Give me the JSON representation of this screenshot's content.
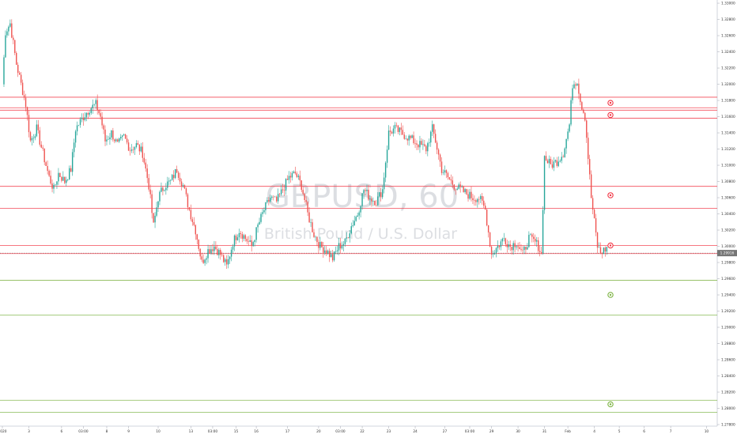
{
  "watermark": {
    "symbol": "GBPUSD, 60",
    "description": "British Pound / U.S. Dollar"
  },
  "price_badge": "1.29916",
  "colors": {
    "up": "#26a69a",
    "down": "#ef5350",
    "res_line": "#f23645",
    "sup_line": "#7cb342",
    "grid": "#f0f3fa",
    "axis_text": "#333333",
    "badge": "#757575"
  },
  "chart_data": {
    "type": "candlestick",
    "title": "GBPUSD, 60",
    "subtitle": "British Pound / U.S. Dollar",
    "xlabel": "",
    "ylabel": "",
    "ylim": [
      1.278,
      1.3302
    ],
    "y_ticks": [
      1.33,
      1.328,
      1.326,
      1.324,
      1.322,
      1.32,
      1.318,
      1.316,
      1.314,
      1.312,
      1.31,
      1.308,
      1.306,
      1.304,
      1.302,
      1.3,
      1.298,
      1.296,
      1.294,
      1.292,
      1.29,
      1.288,
      1.286,
      1.284,
      1.282,
      1.28,
      1.278
    ],
    "x_ticks": [
      {
        "label": "2020",
        "i": 0
      },
      {
        "label": "3",
        "i": 17
      },
      {
        "label": "6",
        "i": 38
      },
      {
        "label": "03:00",
        "i": 52
      },
      {
        "label": "8",
        "i": 67
      },
      {
        "label": "9",
        "i": 81
      },
      {
        "label": "10",
        "i": 100
      },
      {
        "label": "13",
        "i": 121
      },
      {
        "label": "03:00",
        "i": 135
      },
      {
        "label": "15",
        "i": 150
      },
      {
        "label": "16",
        "i": 163
      },
      {
        "label": "17",
        "i": 183
      },
      {
        "label": "20",
        "i": 203
      },
      {
        "label": "03:00",
        "i": 217
      },
      {
        "label": "22",
        "i": 231
      },
      {
        "label": "23",
        "i": 248
      },
      {
        "label": "24",
        "i": 265
      },
      {
        "label": "27",
        "i": 284
      },
      {
        "label": "03:00",
        "i": 300
      },
      {
        "label": "29",
        "i": 314
      },
      {
        "label": "30",
        "i": 331
      },
      {
        "label": "31",
        "i": 348
      },
      {
        "label": "Feb",
        "i": 363
      },
      {
        "label": "4",
        "i": 380
      },
      {
        "label": "5",
        "i": 396
      },
      {
        "label": "6",
        "i": 412
      },
      {
        "label": "7",
        "i": 429
      },
      {
        "label": "10",
        "i": 452
      }
    ],
    "anchors": [
      [
        0,
        1.32
      ],
      [
        2,
        1.3265
      ],
      [
        5,
        1.3275
      ],
      [
        9,
        1.3225
      ],
      [
        15,
        1.3175
      ],
      [
        18,
        1.313
      ],
      [
        22,
        1.3145
      ],
      [
        26,
        1.3115
      ],
      [
        30,
        1.3085
      ],
      [
        33,
        1.307
      ],
      [
        36,
        1.309
      ],
      [
        40,
        1.308
      ],
      [
        44,
        1.3095
      ],
      [
        47,
        1.3145
      ],
      [
        52,
        1.316
      ],
      [
        56,
        1.317
      ],
      [
        60,
        1.3175
      ],
      [
        63,
        1.316
      ],
      [
        66,
        1.313
      ],
      [
        70,
        1.314
      ],
      [
        74,
        1.3125
      ],
      [
        78,
        1.3135
      ],
      [
        82,
        1.312
      ],
      [
        86,
        1.3125
      ],
      [
        90,
        1.3115
      ],
      [
        94,
        1.3075
      ],
      [
        97,
        1.3025
      ],
      [
        100,
        1.306
      ],
      [
        104,
        1.3075
      ],
      [
        108,
        1.308
      ],
      [
        112,
        1.3095
      ],
      [
        116,
        1.3075
      ],
      [
        120,
        1.3045
      ],
      [
        124,
        1.302
      ],
      [
        128,
        1.298
      ],
      [
        132,
        1.2995
      ],
      [
        136,
        1.3
      ],
      [
        140,
        1.299
      ],
      [
        144,
        1.2975
      ],
      [
        148,
        1.3005
      ],
      [
        152,
        1.302
      ],
      [
        156,
        1.301
      ],
      [
        160,
        1.3
      ],
      [
        164,
        1.3025
      ],
      [
        168,
        1.3045
      ],
      [
        172,
        1.306
      ],
      [
        176,
        1.3055
      ],
      [
        180,
        1.307
      ],
      [
        184,
        1.3085
      ],
      [
        188,
        1.309
      ],
      [
        192,
        1.3075
      ],
      [
        196,
        1.304
      ],
      [
        200,
        1.3015
      ],
      [
        204,
        1.3
      ],
      [
        208,
        1.2995
      ],
      [
        212,
        1.2985
      ],
      [
        216,
        1.3
      ],
      [
        220,
        1.3005
      ],
      [
        224,
        1.3025
      ],
      [
        228,
        1.304
      ],
      [
        232,
        1.307
      ],
      [
        236,
        1.306
      ],
      [
        240,
        1.3055
      ],
      [
        244,
        1.307
      ],
      [
        248,
        1.314
      ],
      [
        252,
        1.3145
      ],
      [
        256,
        1.314
      ],
      [
        260,
        1.3135
      ],
      [
        264,
        1.313
      ],
      [
        268,
        1.3125
      ],
      [
        272,
        1.312
      ],
      [
        276,
        1.3145
      ],
      [
        278,
        1.313
      ],
      [
        282,
        1.3095
      ],
      [
        286,
        1.3085
      ],
      [
        290,
        1.3075
      ],
      [
        294,
        1.307
      ],
      [
        298,
        1.3065
      ],
      [
        302,
        1.306
      ],
      [
        306,
        1.306
      ],
      [
        310,
        1.3045
      ],
      [
        314,
        1.299
      ],
      [
        318,
        1.3
      ],
      [
        322,
        1.301
      ],
      [
        326,
        1.3
      ],
      [
        330,
        1.3005
      ],
      [
        334,
        1.299
      ],
      [
        338,
        1.301
      ],
      [
        342,
        1.3005
      ],
      [
        344,
        1.3
      ],
      [
        346,
        1.299
      ],
      [
        348,
        1.311
      ],
      [
        352,
        1.31
      ],
      [
        356,
        1.3105
      ],
      [
        360,
        1.3115
      ],
      [
        364,
        1.315
      ],
      [
        366,
        1.32
      ],
      [
        369,
        1.3205
      ],
      [
        371,
        1.318
      ],
      [
        374,
        1.316
      ],
      [
        376,
        1.311
      ],
      [
        378,
        1.306
      ],
      [
        380,
        1.303
      ],
      [
        382,
        1.3
      ],
      [
        384,
        1.2992
      ],
      [
        386,
        1.2995
      ],
      [
        388,
        1.2998
      ]
    ],
    "resistance_levels": [
      1.3184,
      1.3171,
      1.3168,
      1.3158,
      1.3074,
      1.3047,
      1.3001,
      1.2991
    ],
    "support_levels": [
      1.2958,
      1.2915,
      1.281,
      1.2795
    ],
    "markers": [
      {
        "price": 1.3177,
        "kind": "resistance"
      },
      {
        "price": 1.3162,
        "kind": "resistance"
      },
      {
        "price": 1.3063,
        "kind": "resistance"
      },
      {
        "price": 1.3001,
        "kind": "resistance"
      },
      {
        "price": 1.294,
        "kind": "support"
      },
      {
        "price": 1.2805,
        "kind": "support"
      }
    ],
    "last_price": 1.29916,
    "grid": false
  }
}
